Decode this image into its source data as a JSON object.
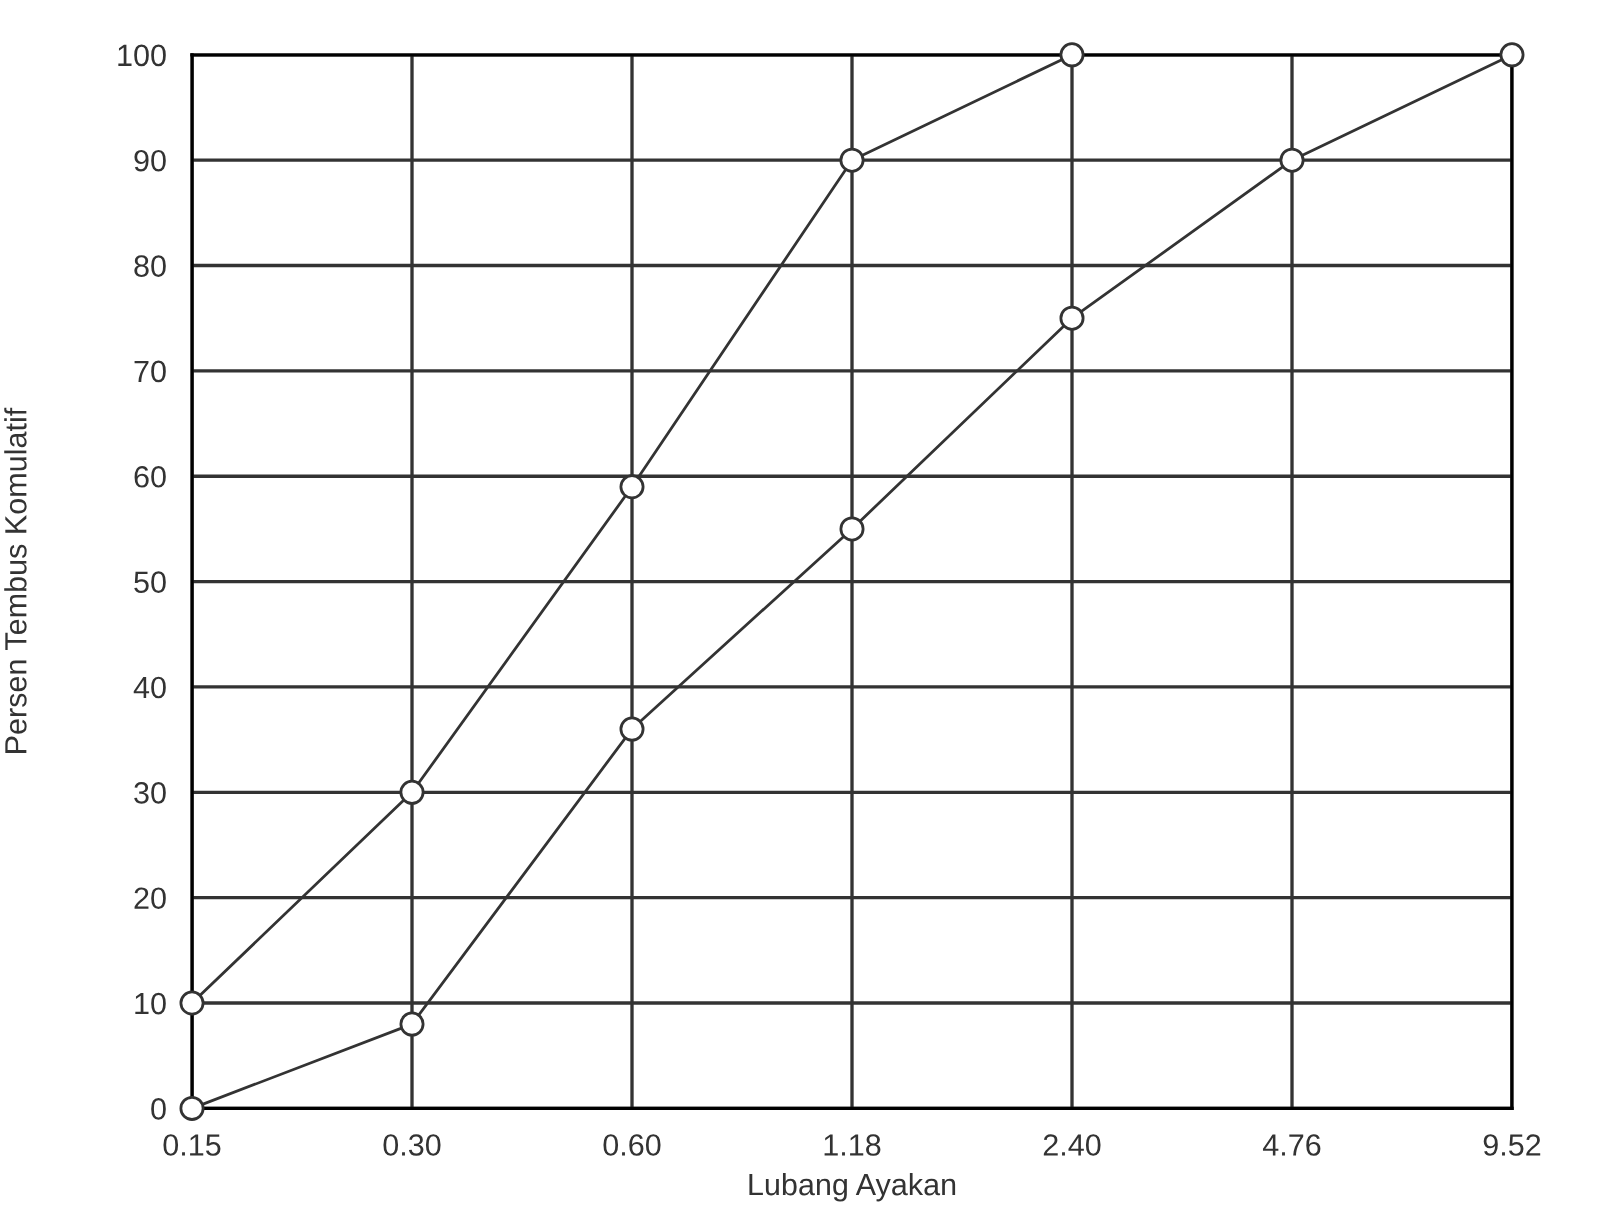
{
  "chart_data": {
    "type": "line",
    "xlabel": "Lubang Ayakan",
    "ylabel": "Persen Tembus Komulatif",
    "categories": [
      "0.15",
      "0.30",
      "0.60",
      "1.18",
      "2.40",
      "4.76",
      "9.52"
    ],
    "series": [
      {
        "color": "#333333",
        "values": [
          10,
          30,
          59,
          90,
          100,
          null,
          null
        ]
      },
      {
        "color": "#333333",
        "values": [
          0,
          8,
          36,
          55,
          75,
          90,
          100
        ]
      }
    ],
    "ylim": [
      0,
      100
    ],
    "yticks": [
      0,
      10,
      20,
      30,
      40,
      50,
      60,
      70,
      80,
      90,
      100
    ],
    "grid": true,
    "marker": "circle",
    "line_style": "solid"
  }
}
